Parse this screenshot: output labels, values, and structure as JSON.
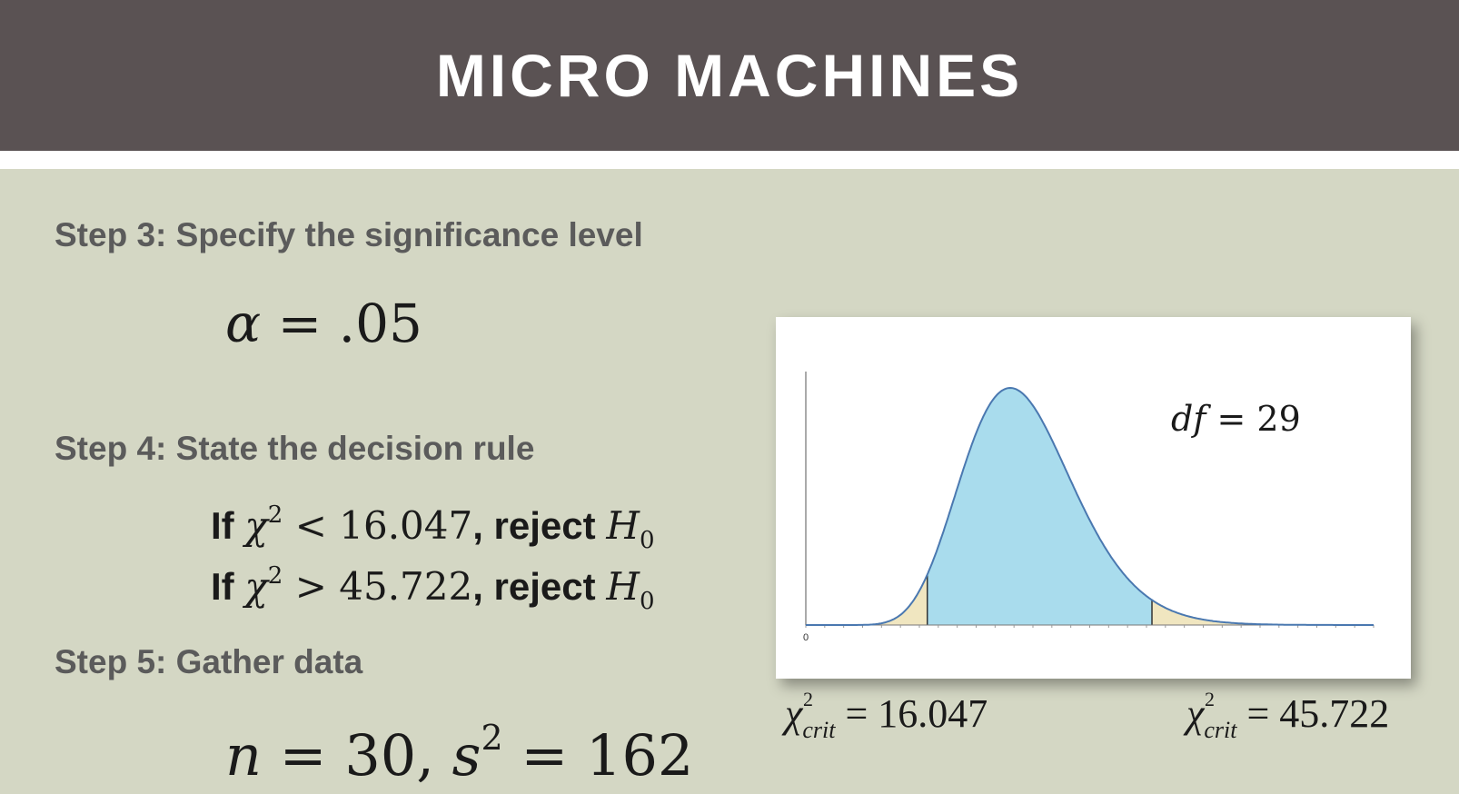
{
  "header": {
    "title": "MICRO MACHINES"
  },
  "steps": {
    "step3": {
      "label": "Step 3: Specify the significance level",
      "formula_lhs": "α",
      "formula_rhs": "= .05"
    },
    "step4": {
      "label": "Step 4: State the decision rule",
      "rule1": {
        "if": "If",
        "chi": "χ",
        "exp": "2",
        "op": "<",
        "value": "16.047",
        "reject": ", reject",
        "h": "H",
        "hsub": "0"
      },
      "rule2": {
        "if": "If",
        "chi": "χ",
        "exp": "2",
        "op": ">",
        "value": "45.722",
        "reject": ", reject",
        "h": "H",
        "hsub": "0"
      }
    },
    "step5": {
      "label": "Step 5: Gather data",
      "n_var": "n",
      "n_val": "= 30,",
      "s_var": "s",
      "s_exp": "2",
      "s_val": "= 162"
    }
  },
  "chart": {
    "df_label": "df",
    "df_value": "= 29",
    "tick_origin": "0",
    "colors": {
      "body": "#a9dced",
      "tails": "#f0e6c0",
      "curve": "#4a78b0"
    },
    "crit_left": {
      "chi": "χ",
      "exp": "2",
      "sub": "crit",
      "value": "= 16.047"
    },
    "crit_right": {
      "chi": "χ",
      "exp": "2",
      "sub": "crit",
      "value": "= 45.722"
    }
  },
  "chart_data": {
    "type": "area",
    "distribution": "chi-square",
    "df": 29,
    "critical_values": [
      16.047,
      45.722
    ],
    "alpha": 0.05,
    "xlim": [
      0,
      75
    ]
  }
}
